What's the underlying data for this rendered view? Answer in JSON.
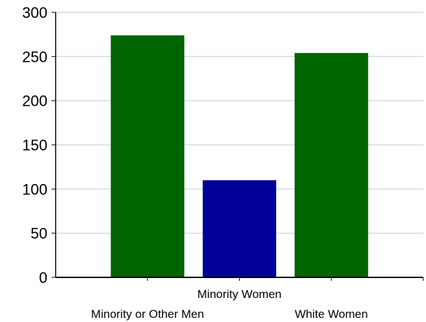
{
  "chart_data": {
    "type": "bar",
    "categories": [
      "Minority or Other Men",
      "Minority Women",
      "White Women"
    ],
    "values": [
      274,
      110,
      254
    ],
    "colors": [
      "#006400",
      "#000099",
      "#006400"
    ],
    "title": "",
    "xlabel": "",
    "ylabel": "",
    "ylim": [
      0,
      300
    ],
    "yticks": [
      0,
      50,
      100,
      150,
      200,
      250,
      300
    ],
    "grid": true
  }
}
